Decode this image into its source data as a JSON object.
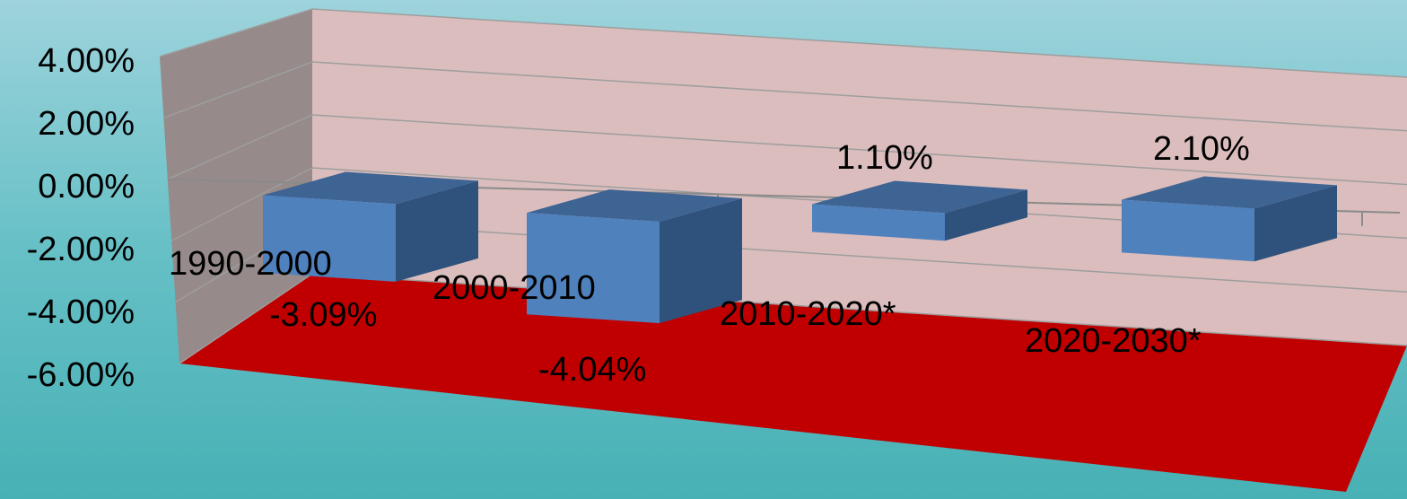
{
  "chart_data": {
    "type": "bar",
    "categories": [
      "1990-2000",
      "2000-2010",
      "2010-2020*",
      "2020-2030*"
    ],
    "values": [
      -3.09,
      -4.04,
      1.1,
      2.1
    ],
    "data_labels": [
      "-3.09%",
      "-4.04%",
      "1.10%",
      "2.10%"
    ],
    "title": "",
    "xlabel": "",
    "ylabel": "",
    "ylim": [
      -6,
      4
    ],
    "ticks": [
      "4.00%",
      "2.00%",
      "0.00%",
      "-2.00%",
      "-4.00%",
      "-6.00%"
    ],
    "grid": true,
    "legend": "none",
    "colors": {
      "bar_front": "#4f81bd",
      "bar_top": "#3e6494",
      "bar_side": "#2f527c",
      "floor": "#c00000",
      "back_wall": "#dbbdbd",
      "side_wall": "#968a8a"
    }
  }
}
